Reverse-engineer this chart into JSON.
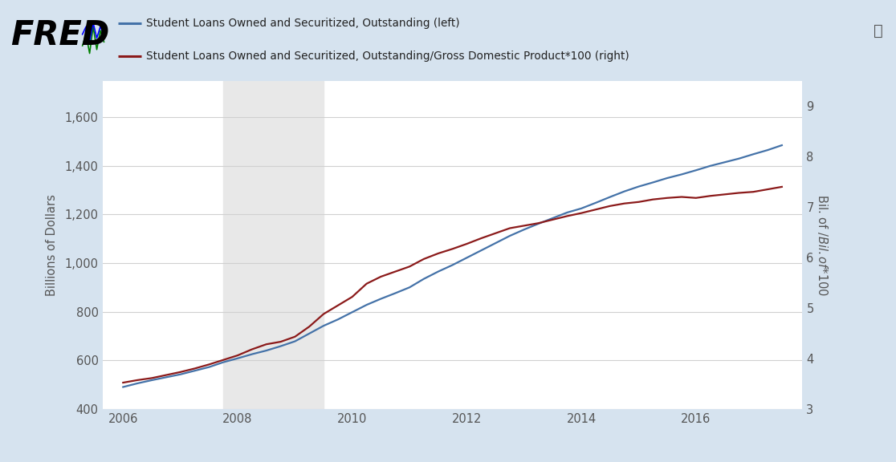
{
  "background_color": "#d6e3ef",
  "plot_bg_color": "#ffffff",
  "recession_color": "#e8e8e8",
  "recession_start": 2007.75,
  "recession_end": 2009.5,
  "blue_line_label": "Student Loans Owned and Securitized, Outstanding (left)",
  "red_line_label": "Student Loans Owned and Securitized, Outstanding/Gross Domestic Product*100 (right)",
  "ylabel_left": "Billions of Dollars",
  "ylabel_right": "Bil. of $/Bil. of $*100",
  "ylim_left": [
    400,
    1750
  ],
  "ylim_right": [
    3,
    9.5
  ],
  "yticks_left": [
    400,
    600,
    800,
    1000,
    1200,
    1400,
    1600
  ],
  "yticks_right": [
    3,
    4,
    5,
    6,
    7,
    8,
    9
  ],
  "blue_color": "#4472a8",
  "red_color": "#8b1a1a",
  "years": [
    2006.0,
    2006.25,
    2006.5,
    2006.75,
    2007.0,
    2007.25,
    2007.5,
    2007.75,
    2008.0,
    2008.25,
    2008.5,
    2008.75,
    2009.0,
    2009.25,
    2009.5,
    2009.75,
    2010.0,
    2010.25,
    2010.5,
    2010.75,
    2011.0,
    2011.25,
    2011.5,
    2011.75,
    2012.0,
    2012.25,
    2012.5,
    2012.75,
    2013.0,
    2013.25,
    2013.5,
    2013.75,
    2014.0,
    2014.25,
    2014.5,
    2014.75,
    2015.0,
    2015.25,
    2015.5,
    2015.75,
    2016.0,
    2016.25,
    2016.5,
    2016.75,
    2017.0,
    2017.25,
    2017.5
  ],
  "blue_values": [
    490,
    505,
    518,
    530,
    542,
    557,
    572,
    592,
    608,
    625,
    640,
    658,
    678,
    710,
    742,
    768,
    798,
    828,
    853,
    876,
    900,
    935,
    965,
    992,
    1022,
    1052,
    1082,
    1112,
    1138,
    1162,
    1185,
    1208,
    1225,
    1248,
    1272,
    1295,
    1315,
    1332,
    1350,
    1365,
    1382,
    1400,
    1415,
    1430,
    1448,
    1465,
    1485
  ],
  "red_values": [
    3.52,
    3.57,
    3.61,
    3.67,
    3.73,
    3.8,
    3.88,
    3.97,
    4.06,
    4.18,
    4.28,
    4.33,
    4.43,
    4.63,
    4.88,
    5.05,
    5.22,
    5.48,
    5.62,
    5.72,
    5.82,
    5.97,
    6.08,
    6.17,
    6.27,
    6.38,
    6.48,
    6.58,
    6.63,
    6.68,
    6.75,
    6.82,
    6.88,
    6.95,
    7.02,
    7.07,
    7.1,
    7.15,
    7.18,
    7.2,
    7.18,
    7.22,
    7.25,
    7.28,
    7.3,
    7.35,
    7.4
  ],
  "xtick_positions": [
    2006,
    2008,
    2010,
    2012,
    2014,
    2016
  ],
  "xtick_labels": [
    "2006",
    "2008",
    "2010",
    "2012",
    "2014",
    "2016"
  ],
  "header_bg_color": "#c8d8e8",
  "grid_color": "#d0d0d0",
  "tick_color": "#555555",
  "label_color": "#555555",
  "legend_color": "#222222"
}
